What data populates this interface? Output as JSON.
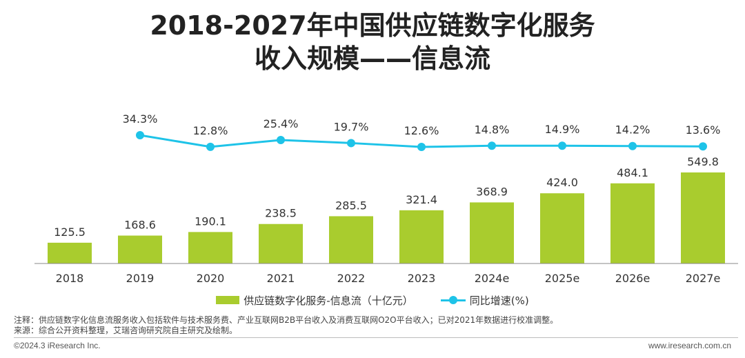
{
  "title_line1": "2018-2027年中国供应链数字化服务",
  "title_line2": "收入规模——信息流",
  "chart_data": {
    "type": "bar",
    "categories": [
      "2018",
      "2019",
      "2020",
      "2021",
      "2022",
      "2023",
      "2024e",
      "2025e",
      "2026e",
      "2027e"
    ],
    "series": [
      {
        "name": "供应链数字化服务-信息流（十亿元）",
        "type": "bar",
        "color": "#a9cc2e",
        "values": [
          125.5,
          168.6,
          190.1,
          238.5,
          285.5,
          321.4,
          368.9,
          424.0,
          484.1,
          549.8
        ],
        "labels": [
          "125.5",
          "168.6",
          "190.1",
          "238.5",
          "285.5",
          "321.4",
          "368.9",
          "424.0",
          "484.1",
          "549.8"
        ]
      },
      {
        "name": "同比增速(%)",
        "type": "line",
        "color": "#1ec3e8",
        "values": [
          null,
          34.3,
          12.8,
          25.4,
          19.7,
          12.6,
          14.8,
          14.9,
          14.2,
          13.6
        ],
        "labels": [
          "",
          "34.3%",
          "12.8%",
          "25.4%",
          "19.7%",
          "12.6%",
          "14.8%",
          "14.9%",
          "14.2%",
          "13.6%"
        ]
      }
    ],
    "legend": "bottom",
    "grid": false
  },
  "notes": {
    "line1": "注释：供应链数字化信息流服务收入包括软件与技术服务费、产业互联网B2B平台收入及消费互联网O2O平台收入；已对2021年数据进行校准调整。",
    "line2": "来源：综合公开资料整理，艾瑞咨询研究院自主研究及绘制。"
  },
  "footer": {
    "left": "©2024.3 iResearch Inc.",
    "right": "www.iresearch.com.cn"
  }
}
